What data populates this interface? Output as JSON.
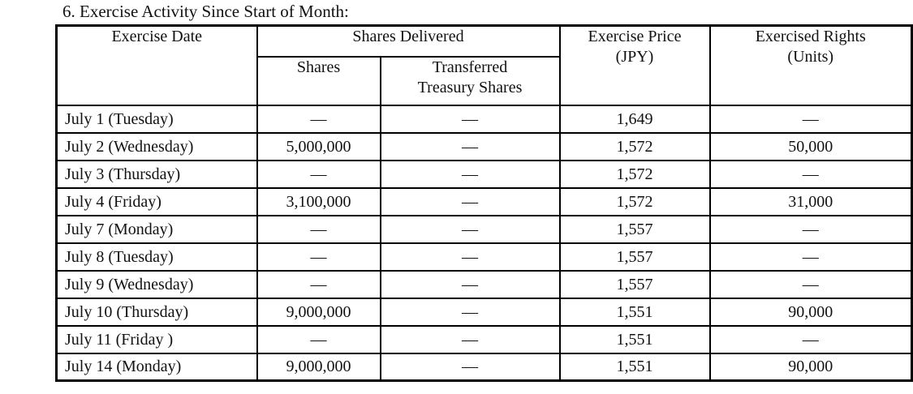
{
  "title": "6. Exercise Activity Since Start of Month:",
  "colors": {
    "background": "#ffffff",
    "text": "#111111",
    "border": "#000000"
  },
  "table": {
    "headers": {
      "exercise_date": "Exercise Date",
      "shares_delivered": "Shares Delivered",
      "shares": "Shares",
      "transferred_treasury_shares": "Transferred\nTreasury Shares",
      "exercise_price": "Exercise Price\n(JPY)",
      "exercised_rights": "Exercised Rights\n(Units)"
    },
    "rows": [
      {
        "date": "July 1 (Tuesday)",
        "shares": "—",
        "transferred": "—",
        "price": "1,649",
        "rights": "—"
      },
      {
        "date": "July 2 (Wednesday)",
        "shares": "5,000,000",
        "transferred": "—",
        "price": "1,572",
        "rights": "50,000"
      },
      {
        "date": "July 3 (Thursday)",
        "shares": "—",
        "transferred": "—",
        "price": "1,572",
        "rights": "—"
      },
      {
        "date": "July 4 (Friday)",
        "shares": "3,100,000",
        "transferred": "—",
        "price": "1,572",
        "rights": "31,000"
      },
      {
        "date": "July 7 (Monday)",
        "shares": "—",
        "transferred": "—",
        "price": "1,557",
        "rights": "—"
      },
      {
        "date": "July 8 (Tuesday)",
        "shares": "—",
        "transferred": "—",
        "price": "1,557",
        "rights": "—"
      },
      {
        "date": "July 9 (Wednesday)",
        "shares": "—",
        "transferred": "—",
        "price": "1,557",
        "rights": "—"
      },
      {
        "date": "July 10 (Thursday)",
        "shares": "9,000,000",
        "transferred": "—",
        "price": "1,551",
        "rights": "90,000"
      },
      {
        "date": "July 11 (Friday )",
        "shares": "—",
        "transferred": "—",
        "price": "1,551",
        "rights": "—"
      },
      {
        "date": "July 14 (Monday)",
        "shares": "9,000,000",
        "transferred": "—",
        "price": "1,551",
        "rights": "90,000"
      }
    ]
  }
}
